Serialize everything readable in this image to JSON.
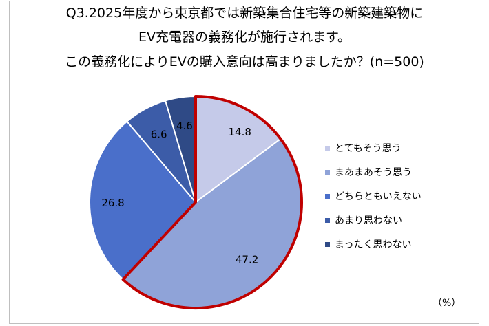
{
  "title_lines": [
    "Q3.2025年度から東京都では新築集合住宅等の新築建築物に",
    "EV充電器の義務化が施行されます。",
    "この義務化によりEVの購入意向は高まりましたか？(n=500)"
  ],
  "unit_label": "（%）",
  "chart_data": {
    "type": "pie",
    "title": "Q3.2025年度から東京都では新築集合住宅等の新築建築物に EV充電器の義務化が施行されます。 この義務化によりEVの購入意向は高まりましたか？(n=500)",
    "categories": [
      "とてもそう思う",
      "まあまあそう思う",
      "どちらともいえない",
      "あまり思わない",
      "まったく思わない"
    ],
    "values": [
      14.8,
      47.2,
      26.8,
      6.6,
      4.6
    ],
    "value_labels": [
      "14.8",
      "47.2",
      "26.8",
      "6.6",
      "4.6"
    ],
    "colors": [
      "#c5cae9",
      "#8fa3d8",
      "#4a6fca",
      "#3c5ca8",
      "#2f4a86"
    ],
    "highlight_color": "#c00000",
    "highlighted_categories": [
      "とてもそう思う",
      "まあまあそう思う"
    ],
    "legend_position": "right",
    "start_angle_deg": 0,
    "direction": "clockwise"
  }
}
